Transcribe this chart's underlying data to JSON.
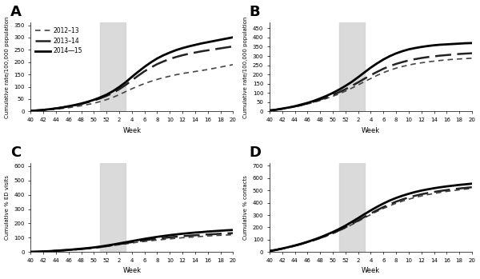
{
  "panel_labels": [
    "A",
    "B",
    "C",
    "D"
  ],
  "xlabel": "Week",
  "legend_labels": [
    "2012–13",
    "2013–14",
    "2014―15"
  ],
  "shade_color": "#d4d4d4",
  "shade_alpha": 0.85,
  "bg_color": "#ffffff",
  "panels": [
    {
      "ylabel": "Cumulative rate/100,000 population",
      "ylim": [
        0,
        360
      ],
      "yticks": [
        0,
        50,
        100,
        150,
        200,
        250,
        300,
        350
      ],
      "series": [
        {
          "lw": 1.2,
          "color": "#444444",
          "dash": [
            4,
            3
          ],
          "y": [
            2,
            3,
            5,
            7,
            9,
            12,
            15,
            19,
            23,
            28,
            33,
            40,
            48,
            57,
            68,
            80,
            92,
            103,
            113,
            122,
            130,
            137,
            143,
            149,
            154,
            158,
            162,
            166,
            170,
            175,
            180,
            185,
            190,
            195,
            200,
            206,
            210
          ]
        },
        {
          "lw": 1.8,
          "color": "#222222",
          "dash": [
            8,
            3
          ],
          "y": [
            2,
            4,
            6,
            9,
            12,
            16,
            20,
            25,
            30,
            37,
            44,
            53,
            63,
            75,
            90,
            107,
            126,
            145,
            163,
            178,
            192,
            203,
            213,
            221,
            228,
            234,
            239,
            244,
            248,
            252,
            256,
            260,
            264,
            268,
            272,
            276,
            280
          ]
        },
        {
          "lw": 2.0,
          "color": "#000000",
          "dash": [],
          "y": [
            2,
            4,
            6,
            9,
            12,
            16,
            21,
            26,
            32,
            39,
            47,
            57,
            68,
            82,
            99,
            118,
            140,
            161,
            181,
            199,
            215,
            228,
            239,
            249,
            257,
            264,
            270,
            276,
            281,
            286,
            291,
            296,
            301,
            306,
            311,
            318,
            328
          ]
        }
      ]
    },
    {
      "ylabel": "Cumulative rate/100,000 population",
      "ylim": [
        0,
        480
      ],
      "yticks": [
        0,
        50,
        100,
        150,
        200,
        250,
        300,
        350,
        400,
        450
      ],
      "series": [
        {
          "lw": 1.2,
          "color": "#444444",
          "dash": [
            4,
            3
          ],
          "y": [
            5,
            9,
            14,
            19,
            25,
            32,
            40,
            49,
            59,
            70,
            82,
            95,
            110,
            126,
            143,
            161,
            178,
            195,
            210,
            223,
            234,
            243,
            251,
            258,
            263,
            268,
            272,
            276,
            279,
            282,
            284,
            286,
            288,
            290,
            292,
            294,
            296
          ]
        },
        {
          "lw": 1.8,
          "color": "#222222",
          "dash": [
            8,
            3
          ],
          "y": [
            5,
            9,
            14,
            20,
            27,
            34,
            43,
            53,
            64,
            76,
            89,
            104,
            120,
            138,
            157,
            177,
            196,
            214,
            231,
            245,
            257,
            267,
            276,
            283,
            289,
            294,
            298,
            302,
            305,
            308,
            311,
            313,
            315,
            317,
            319,
            321,
            323
          ]
        },
        {
          "lw": 2.0,
          "color": "#000000",
          "dash": [],
          "y": [
            5,
            9,
            15,
            21,
            28,
            37,
            46,
            57,
            70,
            84,
            100,
            118,
            138,
            160,
            185,
            211,
            237,
            260,
            281,
            299,
            314,
            326,
            336,
            343,
            349,
            354,
            358,
            361,
            363,
            365,
            367,
            369,
            370,
            371,
            372,
            373,
            374
          ]
        }
      ]
    },
    {
      "ylabel": "Cumulative % ED visits",
      "ylim": [
        0,
        620
      ],
      "yticks": [
        0,
        100,
        200,
        300,
        400,
        500,
        600
      ],
      "series": [
        {
          "lw": 1.2,
          "color": "#444444",
          "dash": [
            4,
            3
          ],
          "y": [
            1,
            2,
            4,
            6,
            8,
            10,
            13,
            16,
            20,
            24,
            28,
            33,
            39,
            45,
            51,
            57,
            63,
            69,
            74,
            79,
            84,
            88,
            92,
            96,
            100,
            103,
            106,
            109,
            112,
            115,
            117,
            119,
            121,
            123,
            125,
            127,
            129
          ]
        },
        {
          "lw": 1.8,
          "color": "#222222",
          "dash": [
            8,
            3
          ],
          "y": [
            1,
            2,
            4,
            6,
            8,
            11,
            14,
            17,
            21,
            25,
            30,
            35,
            41,
            48,
            55,
            62,
            69,
            76,
            82,
            88,
            93,
            98,
            103,
            107,
            111,
            114,
            117,
            120,
            123,
            125,
            128,
            130,
            132,
            134,
            136,
            138,
            140
          ]
        },
        {
          "lw": 2.0,
          "color": "#000000",
          "dash": [],
          "y": [
            1,
            2,
            4,
            6,
            9,
            12,
            15,
            19,
            23,
            27,
            32,
            38,
            45,
            52,
            60,
            68,
            76,
            84,
            92,
            99,
            106,
            112,
            118,
            123,
            128,
            132,
            136,
            139,
            143,
            146,
            149,
            152,
            154,
            157,
            159,
            162,
            165
          ]
        }
      ]
    },
    {
      "ylabel": "Cumulative % contacts",
      "ylim": [
        0,
        720
      ],
      "yticks": [
        0,
        100,
        200,
        300,
        400,
        500,
        600,
        700
      ],
      "series": [
        {
          "lw": 1.2,
          "color": "#444444",
          "dash": [
            4,
            3
          ],
          "y": [
            8,
            17,
            27,
            38,
            50,
            63,
            78,
            94,
            111,
            130,
            150,
            172,
            196,
            222,
            249,
            277,
            304,
            330,
            354,
            376,
            396,
            413,
            429,
            443,
            455,
            466,
            475,
            484,
            492,
            499,
            505,
            511,
            516,
            521,
            526,
            530,
            535
          ]
        },
        {
          "lw": 1.8,
          "color": "#222222",
          "dash": [
            8,
            3
          ],
          "y": [
            8,
            17,
            27,
            39,
            51,
            65,
            80,
            96,
            114,
            133,
            154,
            176,
            201,
            228,
            256,
            285,
            313,
            340,
            365,
            388,
            409,
            427,
            443,
            457,
            469,
            479,
            488,
            496,
            503,
            510,
            516,
            521,
            526,
            531,
            535,
            539,
            543
          ]
        },
        {
          "lw": 2.0,
          "color": "#000000",
          "dash": [],
          "y": [
            8,
            17,
            28,
            40,
            53,
            67,
            83,
            100,
            119,
            140,
            162,
            187,
            214,
            244,
            275,
            307,
            338,
            367,
            394,
            418,
            439,
            457,
            473,
            487,
            499,
            509,
            518,
            526,
            533,
            539,
            545,
            550,
            555,
            560,
            564,
            568,
            572
          ]
        }
      ]
    }
  ]
}
